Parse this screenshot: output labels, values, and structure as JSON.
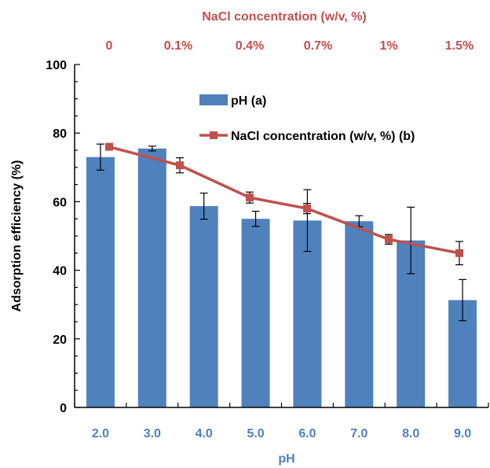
{
  "chart_data": {
    "type": "bar",
    "xlabel": "pH",
    "ylabel": "Adsorption efficiency (%)",
    "top_xlabel": "NaCl concentration (w/v, %)",
    "ylim": [
      0,
      100
    ],
    "yticks": [
      "0",
      "20",
      "40",
      "60",
      "80",
      "100"
    ],
    "categories": [
      "2.0",
      "3.0",
      "4.0",
      "5.0",
      "6.0",
      "7.0",
      "8.0",
      "9.0"
    ],
    "top_categories": [
      "0",
      "0.1%",
      "0.4%",
      "0.7%",
      "1%",
      "1.5%"
    ],
    "grid": false,
    "legend_position": "top-center",
    "series": [
      {
        "name": "pH (a)",
        "kind": "bar",
        "color": "#4F81BD",
        "values": [
          73,
          75.5,
          58.7,
          55,
          54.5,
          54.3,
          48.7,
          31.3
        ],
        "errors": [
          3.8,
          0.7,
          3.8,
          2.2,
          9,
          1.6,
          9.7,
          6
        ]
      },
      {
        "name": "NaCl concentration (w/v, %) (b)",
        "kind": "line",
        "color": "#C0504D",
        "x": [
          "0",
          "0.1%",
          "0.4%",
          "0.7%",
          "1%",
          "1.5%"
        ],
        "values": [
          76,
          70.6,
          61.2,
          58,
          49,
          45
        ],
        "errors": [
          0.6,
          2.2,
          1.6,
          1.5,
          1.4,
          3.4
        ]
      }
    ]
  }
}
